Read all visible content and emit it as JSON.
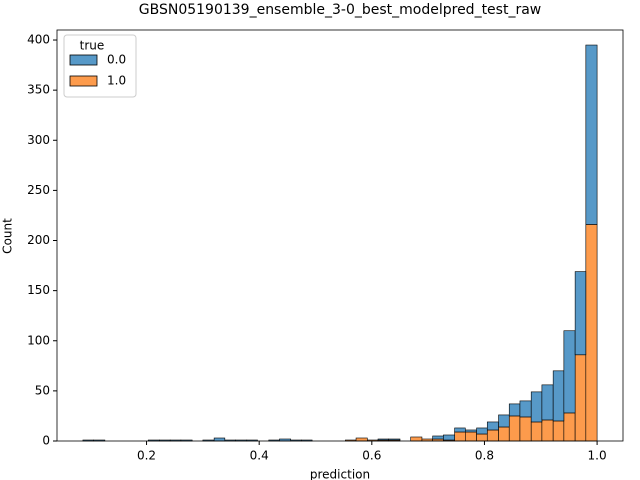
{
  "chart_data": {
    "type": "histogram",
    "title": "GBSN05190139_ensemble_3-0_best_modelpred_test_raw",
    "x_label": "prediction",
    "y_label": "Count",
    "stacked": true,
    "legend_title": "true",
    "legend_loc": "upper left",
    "bins": [
      0.087,
      0.106,
      0.126,
      0.145,
      0.164,
      0.184,
      0.203,
      0.223,
      0.242,
      0.261,
      0.281,
      0.3,
      0.32,
      0.339,
      0.358,
      0.378,
      0.397,
      0.417,
      0.436,
      0.456,
      0.475,
      0.494,
      0.514,
      0.533,
      0.553,
      0.572,
      0.592,
      0.611,
      0.63,
      0.65,
      0.669,
      0.689,
      0.708,
      0.727,
      0.747,
      0.766,
      0.786,
      0.805,
      0.825,
      0.844,
      0.863,
      0.883,
      0.902,
      0.922,
      0.941,
      0.961,
      0.98,
      1.0
    ],
    "series": [
      {
        "name": "0.0",
        "color": "#5799c8",
        "values": [
          1,
          1,
          0,
          0,
          0,
          0,
          1,
          1,
          1,
          1,
          0,
          1,
          3,
          1,
          1,
          1,
          0,
          1,
          2,
          1,
          1,
          0,
          0,
          0,
          0,
          0,
          0,
          1,
          1,
          0,
          0,
          0,
          3,
          5,
          4,
          2,
          6,
          8,
          12,
          12,
          16,
          30,
          35,
          50,
          82,
          83,
          179
        ]
      },
      {
        "name": "1.0",
        "color": "#fd9b4c",
        "values": [
          0,
          0,
          0,
          0,
          0,
          0,
          0,
          0,
          0,
          0,
          0,
          0,
          0,
          0,
          0,
          0,
          0,
          0,
          0,
          0,
          0,
          0,
          0,
          0,
          1,
          3,
          1,
          1,
          1,
          0,
          4,
          2,
          2,
          1,
          9,
          9,
          7,
          11,
          14,
          25,
          24,
          19,
          21,
          20,
          28,
          86,
          216
        ]
      }
    ],
    "xlim": [
      0.041,
      1.046
    ],
    "ylim": [
      0,
      410
    ],
    "xticks": [
      0.2,
      0.4,
      0.6,
      0.8,
      {
        "value": 1,
        "label": "1.0"
      }
    ],
    "yticks": [
      0,
      50,
      100,
      150,
      200,
      250,
      300,
      350,
      400
    ]
  }
}
